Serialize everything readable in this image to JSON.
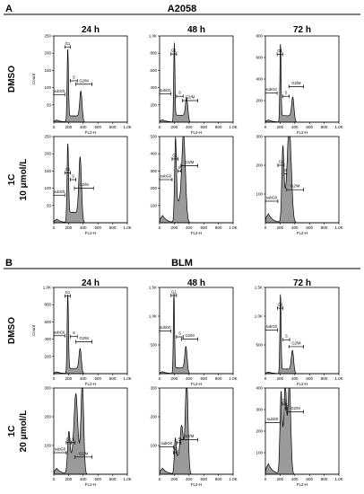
{
  "chart_data": {
    "type": "area",
    "panels": [
      {
        "letter": "A",
        "title": "A2058",
        "columns": [
          "24 h",
          "48 h",
          "72 h"
        ],
        "rows": [
          {
            "label_lines": [
              "DMSO"
            ],
            "plots": [
              {
                "ylim": [
                  0,
                  250
                ],
                "yticks": [
                  "50",
                  "100",
                  "150",
                  "200",
                  "250"
                ],
                "ylabel": "Count",
                "xlabel": "FL2-H",
                "peaks": [
                  [
                    190,
                    205,
                    9
                  ],
                  [
                    370,
                    80,
                    16
                  ]
                ],
                "s_level": 18,
                "gates": [
                  {
                    "name": "G1",
                    "x1": 150,
                    "x2": 225,
                    "y": 218
                  },
                  {
                    "name": "S",
                    "x1": 225,
                    "x2": 320,
                    "y": 120
                  },
                  {
                    "name": "subG0",
                    "x1": 0,
                    "x2": 150,
                    "y": 80
                  },
                  {
                    "name": "G2/M",
                    "x1": 300,
                    "x2": 520,
                    "y": 110
                  }
                ]
              },
              {
                "ylim": [
                  0,
                  1000
                ],
                "yticks": [
                  "200",
                  "400",
                  "600",
                  "800",
                  "1.0K"
                ],
                "xlabel": "FL2-H",
                "peaks": [
                  [
                    200,
                    880,
                    8
                  ],
                  [
                    370,
                    240,
                    16
                  ]
                ],
                "s_level": 80,
                "gates": [
                  {
                    "name": "G1",
                    "x1": 155,
                    "x2": 230,
                    "y": 790
                  },
                  {
                    "name": "S",
                    "x1": 230,
                    "x2": 320,
                    "y": 300
                  },
                  {
                    "name": "subG0",
                    "x1": 0,
                    "x2": 155,
                    "y": 330
                  },
                  {
                    "name": "G2/M",
                    "x1": 310,
                    "x2": 520,
                    "y": 250
                  }
                ]
              },
              {
                "ylim": [
                  0,
                  800
                ],
                "yticks": [
                  "200",
                  "400",
                  "600",
                  "800"
                ],
                "xlabel": "FL2-H",
                "peaks": [
                  [
                    205,
                    700,
                    8
                  ],
                  [
                    375,
                    200,
                    16
                  ]
                ],
                "s_level": 60,
                "gates": [
                  {
                    "name": "G1",
                    "x1": 160,
                    "x2": 235,
                    "y": 630
                  },
                  {
                    "name": "S",
                    "x1": 235,
                    "x2": 325,
                    "y": 240
                  },
                  {
                    "name": "subG0",
                    "x1": 0,
                    "x2": 160,
                    "y": 270
                  },
                  {
                    "name": "G2/M",
                    "x1": 320,
                    "x2": 520,
                    "y": 330
                  }
                ]
              }
            ]
          },
          {
            "label_lines": [
              "1C",
              "10 μmol/L"
            ],
            "plots": [
              {
                "ylim": [
                  0,
                  250
                ],
                "yticks": [
                  "50",
                  "100",
                  "150",
                  "200",
                  "250"
                ],
                "xlabel": "FL2-H",
                "peaks": [
                  [
                    190,
                    215,
                    10
                  ],
                  [
                    360,
                    175,
                    18
                  ]
                ],
                "s_level": 30,
                "gates": [
                  {
                    "name": "G1",
                    "x1": 150,
                    "x2": 225,
                    "y": 145
                  },
                  {
                    "name": "S",
                    "x1": 225,
                    "x2": 300,
                    "y": 125
                  },
                  {
                    "name": "subG0",
                    "x1": 0,
                    "x2": 150,
                    "y": 80
                  },
                  {
                    "name": "G2/M",
                    "x1": 280,
                    "x2": 540,
                    "y": 100
                  }
                ]
              },
              {
                "ylim": [
                  0,
                  500
                ],
                "yticks": [
                  "100",
                  "200",
                  "300",
                  "400",
                  "500"
                ],
                "xlabel": "FL2-H",
                "peaks": [
                  [
                    215,
                    430,
                    12
                  ],
                  [
                    330,
                    450,
                    24
                  ]
                ],
                "s_level": 120,
                "gates": [
                  {
                    "name": "G1",
                    "x1": 170,
                    "x2": 250,
                    "y": 370
                  },
                  {
                    "name": "S",
                    "x1": 250,
                    "x2": 290,
                    "y": 300
                  },
                  {
                    "name": "subG0",
                    "x1": 0,
                    "x2": 170,
                    "y": 250
                  },
                  {
                    "name": "G2/M",
                    "x1": 290,
                    "x2": 520,
                    "y": 330
                  }
                ]
              },
              {
                "ylim": [
                  0,
                  300
                ],
                "yticks": [
                  "100",
                  "200",
                  "300"
                ],
                "xlabel": "FL2-H",
                "peaks": [
                  [
                    235,
                    215,
                    14
                  ],
                  [
                    330,
                    290,
                    26
                  ]
                ],
                "s_level": 90,
                "gates": [
                  {
                    "name": "G1",
                    "x1": 170,
                    "x2": 255,
                    "y": 200
                  },
                  {
                    "name": "S",
                    "x1": 255,
                    "x2": 290,
                    "y": 170
                  },
                  {
                    "name": "subG0",
                    "x1": 0,
                    "x2": 170,
                    "y": 75
                  },
                  {
                    "name": "G2/M",
                    "x1": 290,
                    "x2": 520,
                    "y": 115
                  }
                ]
              }
            ]
          }
        ]
      },
      {
        "letter": "B",
        "title": "BLM",
        "columns": [
          "24 h",
          "48 h",
          "72 h"
        ],
        "rows": [
          {
            "label_lines": [
              "DMSO"
            ],
            "plots": [
              {
                "ylim": [
                  0,
                  1000
                ],
                "yticks": [
                  "200",
                  "400",
                  "600",
                  "800",
                  "1.0K"
                ],
                "ylabel": "Count",
                "xlabel": "FL2-H",
                "peaks": [
                  [
                    190,
                    900,
                    9
                  ],
                  [
                    360,
                    260,
                    16
                  ]
                ],
                "s_level": 60,
                "gates": [
                  {
                    "name": "G1",
                    "x1": 150,
                    "x2": 225,
                    "y": 900
                  },
                  {
                    "name": "S",
                    "x1": 225,
                    "x2": 320,
                    "y": 430
                  },
                  {
                    "name": "subG0",
                    "x1": 0,
                    "x2": 150,
                    "y": 440
                  },
                  {
                    "name": "G2/M",
                    "x1": 300,
                    "x2": 520,
                    "y": 370
                  }
                ]
              },
              {
                "ylim": [
                  0,
                  1500
                ],
                "yticks": [
                  "500",
                  "1.0K",
                  "1.5K"
                ],
                "xlabel": "FL2-H",
                "peaks": [
                  [
                    195,
                    1350,
                    8
                  ],
                  [
                    360,
                    420,
                    16
                  ]
                ],
                "s_level": 100,
                "gates": [
                  {
                    "name": "G1",
                    "x1": 155,
                    "x2": 230,
                    "y": 1360
                  },
                  {
                    "name": "S",
                    "x1": 230,
                    "x2": 320,
                    "y": 640
                  },
                  {
                    "name": "subG0",
                    "x1": 0,
                    "x2": 155,
                    "y": 740
                  },
                  {
                    "name": "G2/M",
                    "x1": 300,
                    "x2": 520,
                    "y": 600
                  }
                ]
              },
              {
                "ylim": [
                  0,
                  1500
                ],
                "yticks": [
                  "500",
                  "1.0K",
                  "1.5K"
                ],
                "xlabel": "FL2-H",
                "peaks": [
                  [
                    205,
                    1350,
                    8
                  ],
                  [
                    370,
                    360,
                    16
                  ]
                ],
                "s_level": 80,
                "gates": [
                  {
                    "name": "G1",
                    "x1": 165,
                    "x2": 240,
                    "y": 1140
                  },
                  {
                    "name": "S",
                    "x1": 240,
                    "x2": 330,
                    "y": 590
                  },
                  {
                    "name": "subG0",
                    "x1": 0,
                    "x2": 165,
                    "y": 760
                  },
                  {
                    "name": "G2/M",
                    "x1": 320,
                    "x2": 520,
                    "y": 470
                  }
                ]
              }
            ]
          },
          {
            "label_lines": [
              "1C",
              "20 μmol/L"
            ],
            "plots": [
              {
                "ylim": [
                  0,
                  300
                ],
                "yticks": [
                  "100",
                  "200",
                  "300"
                ],
                "xlabel": "FL2-H",
                "peaks": [
                  [
                    200,
                    110,
                    16
                  ],
                  [
                    300,
                    220,
                    24
                  ],
                  [
                    390,
                    290,
                    18
                  ]
                ],
                "s_level": 60,
                "gates": [
                  {
                    "name": "G1",
                    "x1": 170,
                    "x2": 235,
                    "y": 110
                  },
                  {
                    "name": "S",
                    "x1": 235,
                    "x2": 290,
                    "y": 110
                  },
                  {
                    "name": "subG0",
                    "x1": 0,
                    "x2": 170,
                    "y": 75
                  },
                  {
                    "name": "G2/M",
                    "x1": 290,
                    "x2": 520,
                    "y": 60
                  }
                ]
              },
              {
                "ylim": [
                  0,
                  300
                ],
                "yticks": [
                  "100",
                  "200",
                  "300"
                ],
                "xlabel": "FL2-H",
                "peaks": [
                  [
                    210,
                    90,
                    12
                  ],
                  [
                    300,
                    110,
                    20
                  ],
                  [
                    370,
                    300,
                    18
                  ]
                ],
                "s_level": 60,
                "gates": [
                  {
                    "name": "G1",
                    "x1": 190,
                    "x2": 240,
                    "y": 75
                  },
                  {
                    "name": "S",
                    "x1": 240,
                    "x2": 290,
                    "y": 110
                  },
                  {
                    "name": "subG0",
                    "x1": 0,
                    "x2": 190,
                    "y": 95
                  },
                  {
                    "name": "G2/M",
                    "x1": 290,
                    "x2": 520,
                    "y": 120
                  }
                ]
              },
              {
                "ylim": [
                  0,
                  400
                ],
                "yticks": [
                  "100",
                  "200",
                  "300",
                  "400"
                ],
                "xlabel": "FL2-H",
                "peaks": [
                  [
                    210,
                    300,
                    14
                  ],
                  [
                    270,
                    280,
                    16
                  ],
                  [
                    330,
                    350,
                    18
                  ]
                ],
                "s_level": 140,
                "gates": [
                  {
                    "name": "G1",
                    "x1": 230,
                    "x2": 275,
                    "y": 325
                  },
                  {
                    "name": "S",
                    "x1": 275,
                    "x2": 300,
                    "y": 305
                  },
                  {
                    "name": "subG0",
                    "x1": 0,
                    "x2": 200,
                    "y": 240
                  },
                  {
                    "name": "G2/M",
                    "x1": 300,
                    "x2": 520,
                    "y": 290
                  }
                ]
              }
            ]
          }
        ]
      }
    ],
    "xlim": [
      0,
      1000
    ],
    "xticks": [
      "0",
      "200",
      "400",
      "600",
      "800",
      "1.0K"
    ],
    "fill_color": "#9a9a9a",
    "line_color": "#000000"
  }
}
